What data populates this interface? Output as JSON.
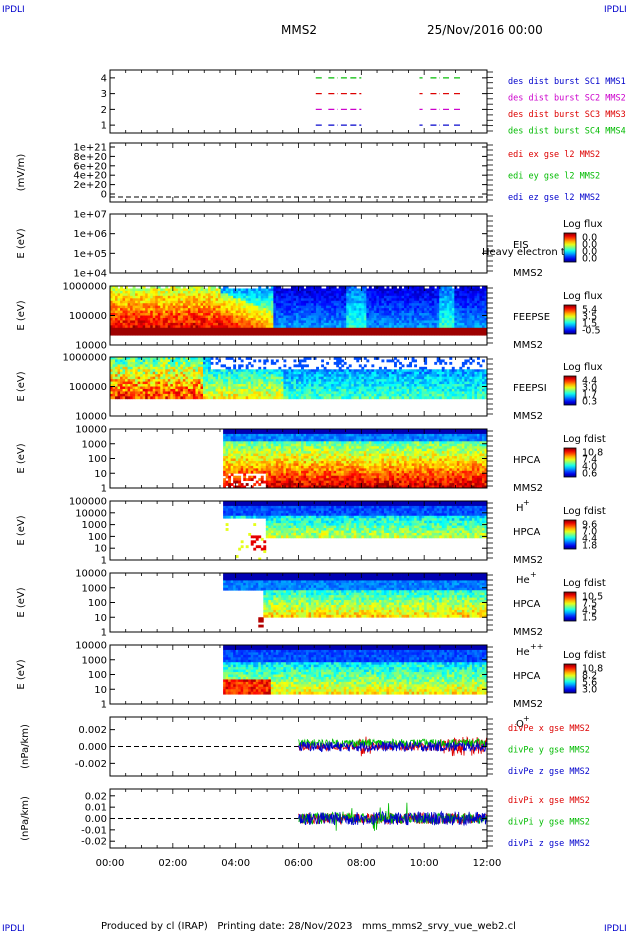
{
  "header": {
    "corner_left": "IPDLI",
    "corner_right": "IPDLI",
    "corner_bottom_left": "IPDLI",
    "corner_bottom_right": "IPDLI",
    "spacecraft": "MMS2",
    "date": "25/Nov/2016 00:00"
  },
  "footer": {
    "text": "Produced by cl (IRAP)   Printing date: 28/Nov/2023   mms_mms2_srvy_vue_web2.cl"
  },
  "colors": {
    "blue": "#0000cc",
    "magenta": "#cc00cc",
    "red": "#dd0000",
    "green": "#00bb00"
  },
  "chart_data": [
    {
      "type": "line",
      "id": "burst",
      "ylabel": "",
      "yticks": [
        "4",
        "3",
        "2",
        "1"
      ],
      "ylim": [
        0.5,
        4.5
      ],
      "legend": [
        {
          "text": "des dist burst SC1 MMS1",
          "color": "#0000cc"
        },
        {
          "text": "des dist burst SC2 MMS2",
          "color": "#cc00cc"
        },
        {
          "text": "des dist burst SC3 MMS3",
          "color": "#dd0000"
        },
        {
          "text": "des dist burst SC4 MMS4",
          "color": "#00bb00"
        }
      ],
      "series": [
        {
          "level": 4,
          "color": "#00bb00",
          "intervals": [
            [
              6.55,
              6.75
            ],
            [
              6.95,
              7.25
            ],
            [
              7.35,
              7.6
            ],
            [
              7.65,
              8.0
            ],
            [
              9.85,
              9.95
            ],
            [
              10.2,
              10.5
            ],
            [
              10.6,
              10.85
            ],
            [
              10.95,
              11.15
            ]
          ]
        },
        {
          "level": 3,
          "color": "#dd0000",
          "intervals": [
            [
              6.55,
              6.75
            ],
            [
              6.95,
              7.25
            ],
            [
              7.35,
              7.6
            ],
            [
              7.65,
              8.0
            ],
            [
              9.85,
              9.95
            ],
            [
              10.2,
              10.5
            ],
            [
              10.6,
              10.85
            ],
            [
              10.95,
              11.15
            ]
          ]
        },
        {
          "level": 2,
          "color": "#cc00cc",
          "intervals": [
            [
              6.55,
              6.75
            ],
            [
              6.95,
              7.25
            ],
            [
              7.35,
              7.6
            ],
            [
              7.65,
              8.0
            ],
            [
              9.85,
              9.95
            ],
            [
              10.2,
              10.5
            ],
            [
              10.6,
              10.85
            ],
            [
              10.95,
              11.15
            ]
          ]
        },
        {
          "level": 1,
          "color": "#0000cc",
          "intervals": [
            [
              6.55,
              6.75
            ],
            [
              6.95,
              7.25
            ],
            [
              7.35,
              7.6
            ],
            [
              7.65,
              8.0
            ],
            [
              9.85,
              9.95
            ],
            [
              10.2,
              10.5
            ],
            [
              10.6,
              10.85
            ],
            [
              10.95,
              11.15
            ]
          ]
        }
      ]
    },
    {
      "type": "line",
      "id": "edi",
      "ylabel": "(mV/m)",
      "yticks": [
        "1e+21",
        "8e+20",
        "6e+20",
        "4e+20",
        "2e+20",
        "0"
      ],
      "ylim": [
        0,
        1.05e+21
      ],
      "legend": [
        {
          "text": "edi ex gse l2 MMS2",
          "color": "#dd0000"
        },
        {
          "text": "edi ey gse l2 MMS2",
          "color": "#00bb00"
        },
        {
          "text": "edi ez gse l2 MMS2",
          "color": "#0000cc"
        }
      ],
      "dashed_zero": true
    },
    {
      "type": "heatmap",
      "id": "eis",
      "ylabel": "E (eV)",
      "yticks": [
        "1e+07",
        "1e+06",
        "1e+05",
        "1e+04"
      ],
      "instrument": [
        "EIS",
        "MMS2"
      ],
      "overlay": "Heavy electron to",
      "colorbar_title": "Log flux",
      "colorbar_ticks": [
        "0.0",
        "0.0",
        "0.0",
        "0.0"
      ],
      "filled": false
    },
    {
      "type": "heatmap",
      "id": "feepse",
      "ylabel": "E (eV)",
      "yticks": [
        "1000000",
        "100000",
        "10000"
      ],
      "instrument": [
        "FEEPSE",
        "MMS2"
      ],
      "colorbar_title": "Log flux",
      "colorbar_ticks": [
        "5.4",
        "3.5",
        "1.5",
        "-0.5"
      ],
      "filled": true,
      "pattern": "feepse"
    },
    {
      "type": "heatmap",
      "id": "feepsi",
      "ylabel": "E (eV)",
      "yticks": [
        "1000000",
        "100000",
        "10000"
      ],
      "instrument": [
        "FEEPSI",
        "MMS2"
      ],
      "colorbar_title": "Log flux",
      "colorbar_ticks": [
        "4.4",
        "3.0",
        "1.7",
        "0.3"
      ],
      "filled": true,
      "pattern": "feepsi"
    },
    {
      "type": "heatmap",
      "id": "hpca_h",
      "ylabel": "E (eV)",
      "yticks": [
        "10000",
        "1000",
        "100",
        "10",
        "1"
      ],
      "instrument": [
        "HPCA",
        "MMS2"
      ],
      "species": "H",
      "species_sup": "+",
      "colorbar_title": "Log fdist",
      "colorbar_ticks": [
        "10.8",
        "7.4",
        "4.0",
        "0.6"
      ],
      "filled": true,
      "pattern": "hpca_h"
    },
    {
      "type": "heatmap",
      "id": "hpca_he",
      "ylabel": "E (eV)",
      "yticks": [
        "100000",
        "10000",
        "1000",
        "100",
        "10",
        "1"
      ],
      "instrument": [
        "HPCA",
        "MMS2"
      ],
      "species": "He",
      "species_sup": "+",
      "colorbar_title": "Log fdist",
      "colorbar_ticks": [
        "9.6",
        "7.0",
        "4.4",
        "1.8"
      ],
      "filled": true,
      "pattern": "hpca_he"
    },
    {
      "type": "heatmap",
      "id": "hpca_he2",
      "ylabel": "E (eV)",
      "yticks": [
        "10000",
        "1000",
        "100",
        "10",
        "1"
      ],
      "instrument": [
        "HPCA",
        "MMS2"
      ],
      "species": "He",
      "species_sup": "++",
      "colorbar_title": "Log fdist",
      "colorbar_ticks": [
        "10.5",
        "7.5",
        "4.5",
        "1.5"
      ],
      "filled": true,
      "pattern": "hpca_he2"
    },
    {
      "type": "heatmap",
      "id": "hpca_o",
      "ylabel": "E (eV)",
      "yticks": [
        "10000",
        "1000",
        "100",
        "10",
        "1"
      ],
      "instrument": [
        "HPCA",
        "MMS2"
      ],
      "species": "O",
      "species_sup": "+",
      "colorbar_title": "Log fdist",
      "colorbar_ticks": [
        "10.8",
        "8.2",
        "5.6",
        "3.0"
      ],
      "filled": true,
      "pattern": "hpca_o"
    },
    {
      "type": "line",
      "id": "divpe",
      "ylabel": "(nPa/km)",
      "yticks": [
        "0.002",
        "0.000",
        "-0.002"
      ],
      "ylim": [
        -0.0035,
        0.0035
      ],
      "tickvals": [
        0.002,
        0.0,
        -0.002
      ],
      "legend": [
        {
          "text": "divPe x gse MMS2",
          "color": "#dd0000"
        },
        {
          "text": "divPe y gse MMS2",
          "color": "#00bb00"
        },
        {
          "text": "divPe z gse MMS2",
          "color": "#0000cc"
        }
      ],
      "data_start_hour": 6.0,
      "amplitude": 0.0006,
      "dashed_zero": true
    },
    {
      "type": "line",
      "id": "divpi",
      "ylabel": "(nPa/km)",
      "yticks": [
        "0.02",
        "0.01",
        "0.00",
        "-0.01",
        "-0.02"
      ],
      "ylim": [
        -0.026,
        0.026
      ],
      "tickvals": [
        0.02,
        0.01,
        0.0,
        -0.01,
        -0.02
      ],
      "legend": [
        {
          "text": "divPi x gse MMS2",
          "color": "#dd0000"
        },
        {
          "text": "divPi y gse MMS2",
          "color": "#00bb00"
        },
        {
          "text": "divPi z gse MMS2",
          "color": "#0000cc"
        }
      ],
      "data_start_hour": 6.0,
      "amplitude": 0.006,
      "dashed_zero": true
    }
  ],
  "xaxis": {
    "range": [
      0,
      12
    ],
    "labels": [
      "00:00",
      "02:00",
      "04:00",
      "06:00",
      "08:00",
      "10:00",
      "12:00"
    ]
  }
}
